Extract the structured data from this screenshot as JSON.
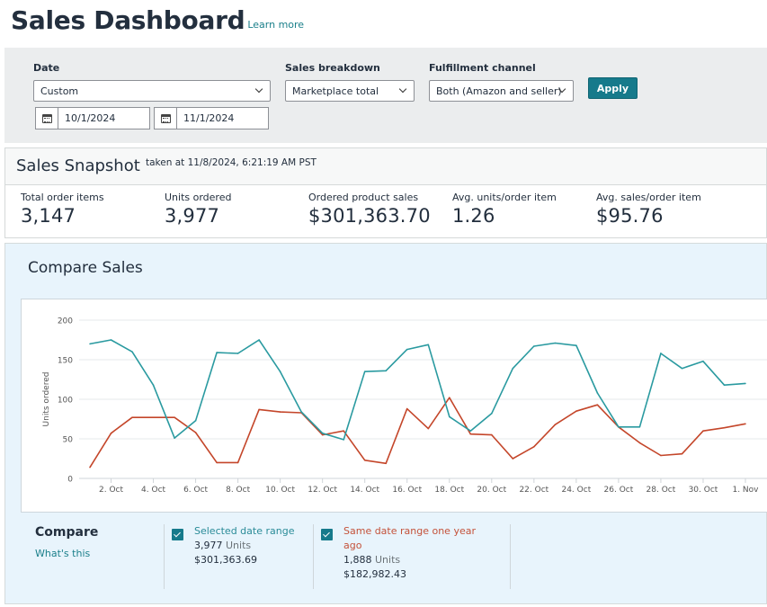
{
  "header": {
    "title": "Sales Dashboard",
    "learn_more": "Learn more"
  },
  "filters": {
    "date": {
      "label": "Date",
      "selected": "Custom",
      "start_date": "10/1/2024",
      "end_date": "11/1/2024"
    },
    "sales_breakdown": {
      "label": "Sales breakdown",
      "selected": "Marketplace total"
    },
    "fulfillment_channel": {
      "label": "Fulfillment channel",
      "selected": "Both (Amazon and seller)"
    },
    "apply_label": "Apply"
  },
  "snapshot": {
    "title": "Sales Snapshot",
    "taken_at": "taken at 11/8/2024, 6:21:19 AM PST",
    "metrics": [
      {
        "label": "Total order items",
        "value": "3,147"
      },
      {
        "label": "Units ordered",
        "value": "3,977"
      },
      {
        "label": "Ordered product sales",
        "value": "$301,363.70"
      },
      {
        "label": "Avg. units/order item",
        "value": "1.26"
      },
      {
        "label": "Avg. sales/order item",
        "value": "$95.76"
      }
    ]
  },
  "compare_sales": {
    "title": "Compare Sales",
    "compare_label": "Compare",
    "whats_this": "What's this",
    "legend": [
      {
        "name": "Selected date range",
        "units": "3,977",
        "units_word": "Units",
        "sales": "$301,363.69",
        "checked": true
      },
      {
        "name": "Same date range one year ago",
        "units": "1,888",
        "units_word": "Units",
        "sales": "$182,982.43",
        "checked": true
      }
    ]
  },
  "colors": {
    "accent": "#167a8b",
    "series_selected": "#2a9aa0",
    "series_year_ago": "#c4462a"
  },
  "chart_data": {
    "type": "line",
    "title": "",
    "xlabel": "",
    "ylabel": "Units ordered",
    "ylim": [
      0,
      200
    ],
    "yticks": [
      0,
      50,
      100,
      150,
      200
    ],
    "grid": true,
    "x": [
      "1. Oct",
      "2. Oct",
      "3. Oct",
      "4. Oct",
      "5. Oct",
      "6. Oct",
      "7. Oct",
      "8. Oct",
      "9. Oct",
      "10. Oct",
      "11. Oct",
      "12. Oct",
      "13. Oct",
      "14. Oct",
      "15. Oct",
      "16. Oct",
      "17. Oct",
      "18. Oct",
      "19. Oct",
      "20. Oct",
      "21. Oct",
      "22. Oct",
      "23. Oct",
      "24. Oct",
      "25. Oct",
      "26. Oct",
      "27. Oct",
      "28. Oct",
      "29. Oct",
      "30. Oct",
      "31. Oct",
      "1. Nov"
    ],
    "xtick_labels": [
      "2. Oct",
      "4. Oct",
      "6. Oct",
      "8. Oct",
      "10. Oct",
      "12. Oct",
      "14. Oct",
      "16. Oct",
      "18. Oct",
      "20. Oct",
      "22. Oct",
      "24. Oct",
      "26. Oct",
      "28. Oct",
      "30. Oct",
      "1. Nov"
    ],
    "series": [
      {
        "name": "Selected date range",
        "color": "#2a9aa0",
        "values": [
          170,
          175,
          160,
          118,
          51,
          73,
          159,
          158,
          175,
          135,
          84,
          57,
          49,
          135,
          136,
          163,
          169,
          78,
          60,
          82,
          139,
          167,
          171,
          168,
          108,
          65,
          65,
          158,
          139,
          148,
          118,
          120
        ]
      },
      {
        "name": "Same date range one year ago",
        "color": "#c4462a",
        "values": [
          14,
          57,
          77,
          77,
          77,
          58,
          20,
          20,
          87,
          84,
          83,
          55,
          60,
          23,
          19,
          88,
          63,
          102,
          56,
          55,
          25,
          40,
          68,
          85,
          93,
          65,
          45,
          29,
          31,
          60,
          64,
          69
        ]
      }
    ]
  }
}
